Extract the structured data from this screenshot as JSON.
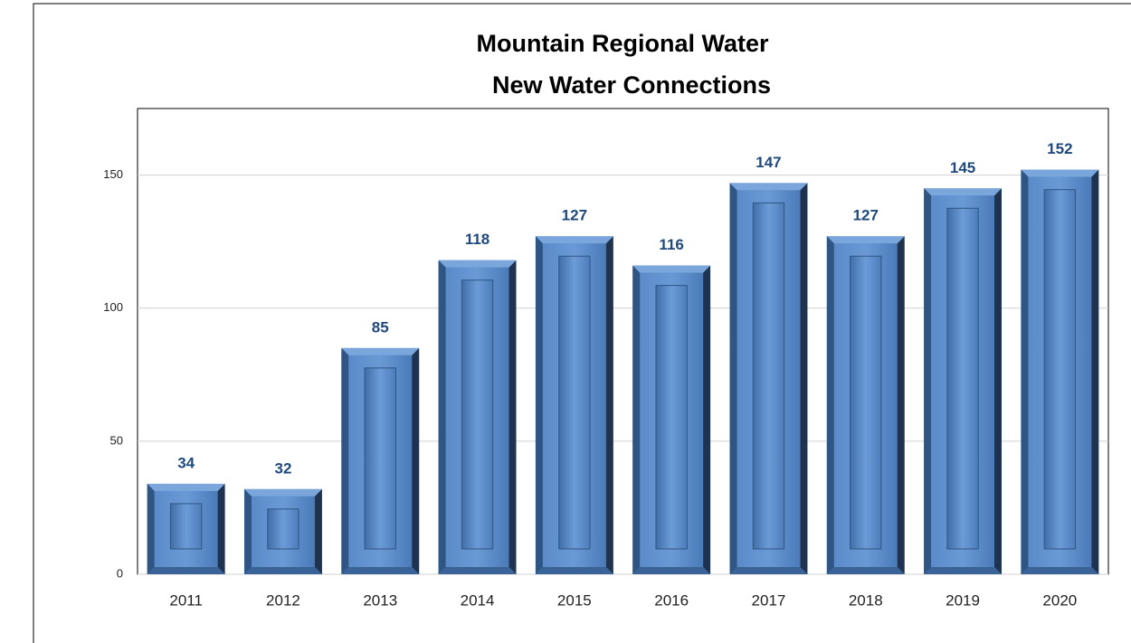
{
  "chart_data": {
    "type": "bar",
    "title": [
      "Mountain Regional Water",
      "New Water Connections"
    ],
    "categories": [
      "2011",
      "2012",
      "2013",
      "2014",
      "2015",
      "2016",
      "2017",
      "2018",
      "2019",
      "2020"
    ],
    "values": [
      34,
      32,
      85,
      118,
      127,
      116,
      147,
      127,
      145,
      152
    ],
    "color": "#4f81bd",
    "ylim": [
      0,
      175
    ],
    "yticks": [
      0,
      50,
      100,
      150
    ],
    "grid": true
  }
}
